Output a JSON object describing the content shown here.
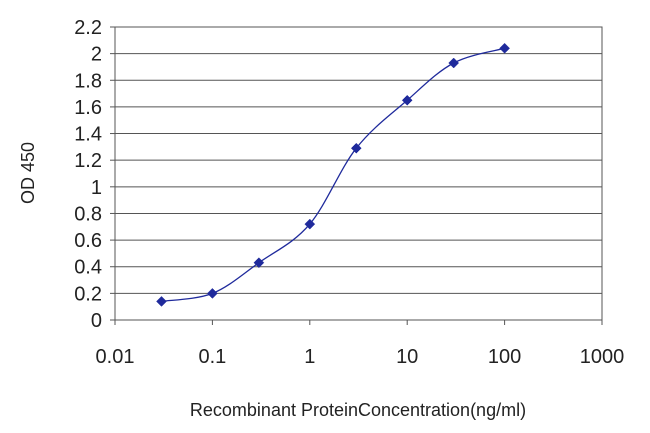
{
  "chart_data": {
    "type": "line",
    "title": "",
    "xlabel": "Recombinant ProteinConcentration(ng/ml)",
    "ylabel": "OD 450",
    "xscale": "log",
    "xlim": [
      0.01,
      1000
    ],
    "ylim": [
      0,
      2.2
    ],
    "xticks": [
      0.01,
      0.1,
      1,
      10,
      100,
      1000
    ],
    "xtick_labels": [
      "0.01",
      "0.1",
      "1",
      "10",
      "100",
      "1000"
    ],
    "yticks": [
      0,
      0.2,
      0.4,
      0.6,
      0.8,
      1,
      1.2,
      1.4,
      1.6,
      1.8,
      2,
      2.2
    ],
    "ytick_labels": [
      "0",
      "0.2",
      "0.4",
      "0.6",
      "0.8",
      "1",
      "1.2",
      "1.4",
      "1.6",
      "1.8",
      "2",
      "2.2"
    ],
    "grid": "horizontal",
    "legend": "none",
    "series": [
      {
        "x": [
          0.03,
          0.1,
          0.3,
          1,
          3,
          10,
          30,
          100
        ],
        "y": [
          0.14,
          0.2,
          0.43,
          0.72,
          1.29,
          1.65,
          1.93,
          2.04
        ],
        "color": "#1f2a9c",
        "marker": "diamond"
      }
    ]
  }
}
